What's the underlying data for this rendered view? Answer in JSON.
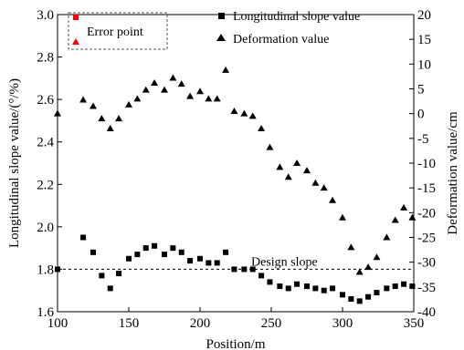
{
  "chart_data": {
    "type": "scatter",
    "xlabel": "Position/m",
    "ylabel_left": "Longitudinal slope value/(°/%)",
    "ylabel_right": "Deformation value/cm",
    "x_range": [
      100,
      350
    ],
    "y_left_range": [
      1.6,
      3.0
    ],
    "y_right_range": [
      -40,
      20
    ],
    "x_ticks": [
      100,
      150,
      200,
      250,
      300,
      350
    ],
    "y_left_ticks": [
      1.6,
      1.8,
      2.0,
      2.2,
      2.4,
      2.6,
      2.8,
      3.0
    ],
    "y_right_ticks": [
      20,
      15,
      10,
      5,
      0,
      -5,
      -10,
      -15,
      -20,
      -25,
      -30,
      -35,
      -40
    ],
    "grid": false,
    "legend_position": "top-right",
    "design_slope": {
      "value": 1.8,
      "label": "Design slope"
    },
    "series": [
      {
        "name": "Longitudinal slope value",
        "marker": "square",
        "axis": "left",
        "x": [
          100,
          118,
          125,
          131,
          137,
          143,
          150,
          156,
          162,
          168,
          175,
          181,
          187,
          193,
          200,
          206,
          212,
          218,
          224,
          231,
          237,
          243,
          249,
          256,
          262,
          268,
          275,
          281,
          287,
          293,
          300,
          306,
          312,
          318,
          324,
          331,
          337,
          343,
          349
        ],
        "y": [
          1.8,
          1.95,
          1.88,
          1.77,
          1.71,
          1.78,
          1.85,
          1.87,
          1.9,
          1.91,
          1.87,
          1.9,
          1.88,
          1.84,
          1.85,
          1.83,
          1.83,
          1.88,
          1.8,
          1.8,
          1.8,
          1.77,
          1.74,
          1.72,
          1.71,
          1.73,
          1.72,
          1.71,
          1.7,
          1.71,
          1.68,
          1.66,
          1.65,
          1.67,
          1.69,
          1.71,
          1.72,
          1.73,
          1.72
        ]
      },
      {
        "name": "Deformation value",
        "marker": "triangle",
        "axis": "right",
        "x": [
          100,
          118,
          125,
          131,
          137,
          143,
          150,
          156,
          162,
          168,
          175,
          181,
          187,
          193,
          200,
          206,
          212,
          218,
          224,
          231,
          237,
          243,
          249,
          256,
          262,
          268,
          275,
          281,
          287,
          293,
          300,
          306,
          312,
          318,
          324,
          331,
          337,
          343,
          349
        ],
        "y": [
          0.0,
          2.8,
          1.5,
          -1.0,
          -3.0,
          -1.0,
          1.8,
          3.0,
          4.8,
          6.2,
          4.8,
          7.2,
          6.0,
          3.5,
          4.5,
          3.0,
          3.0,
          8.8,
          0.5,
          0,
          -0.5,
          -3.0,
          -6.8,
          -10.8,
          -12.8,
          -10.0,
          -11.5,
          -14.0,
          -15.0,
          -17.5,
          -21.0,
          -27.0,
          -32.0,
          -31.0,
          -29.0,
          -25.0,
          -21.5,
          -19.0,
          -21.0
        ]
      }
    ],
    "error_legend": {
      "label": "Error point",
      "colors": {
        "square": "#ff0000",
        "triangle": "#ff0000"
      }
    }
  }
}
